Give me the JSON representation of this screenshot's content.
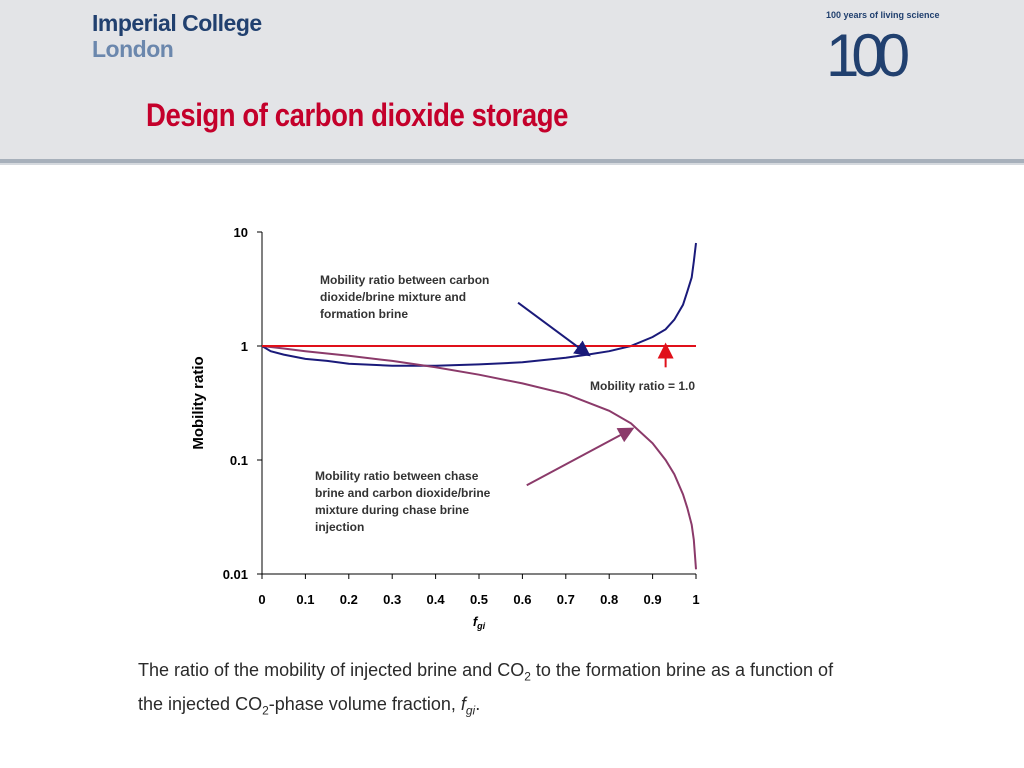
{
  "header": {
    "logo_line1": "Imperial College",
    "logo_line2": "London",
    "badge_caption": "100 years of living science",
    "badge_number": "100",
    "slide_title": "Design of carbon dioxide storage"
  },
  "caption": {
    "part1": "The ratio of the mobility of injected brine and CO",
    "sub1": "2",
    "part2": " to the formation brine as a function of the injected CO",
    "sub2": "2",
    "part3": "-phase volume fraction, ",
    "var_main": "f",
    "var_sub": "gi",
    "part4": "."
  },
  "colors": {
    "title_red": "#c4002b",
    "logo_blue": "#21406f",
    "logo_light_blue": "#6b87ad",
    "header_gray": "#e3e4e7"
  },
  "chart_data": {
    "type": "line",
    "xlabel_main": "f",
    "xlabel_sub": "gi",
    "ylabel": "Mobility ratio",
    "xlim": [
      0,
      1
    ],
    "ylim": [
      0.01,
      10
    ],
    "yscale": "log",
    "x_ticks": [
      0,
      0.1,
      0.2,
      0.3,
      0.4,
      0.5,
      0.6,
      0.7,
      0.8,
      0.9,
      1
    ],
    "x_tick_labels": [
      "0",
      "0.1",
      "0.2",
      "0.3",
      "0.4",
      "0.5",
      "0.6",
      "0.7",
      "0.8",
      "0.9",
      "1"
    ],
    "y_ticks": [
      10,
      1,
      0.1,
      0.01
    ],
    "y_tick_labels": [
      "10",
      "1",
      "0.1",
      "0.01"
    ],
    "grid": false,
    "legend": "none",
    "series": [
      {
        "color": "#1a1a7a",
        "x": [
          0,
          0.02,
          0.05,
          0.1,
          0.15,
          0.2,
          0.3,
          0.4,
          0.5,
          0.6,
          0.7,
          0.75,
          0.8,
          0.85,
          0.9,
          0.93,
          0.95,
          0.97,
          0.98,
          0.99,
          0.995,
          1.0
        ],
        "y": [
          1.0,
          0.9,
          0.84,
          0.77,
          0.74,
          0.7,
          0.67,
          0.67,
          0.69,
          0.72,
          0.79,
          0.84,
          0.9,
          1.0,
          1.2,
          1.4,
          1.7,
          2.3,
          3.0,
          4.0,
          5.5,
          8.0
        ]
      },
      {
        "color": "#8b3a6a",
        "x": [
          0,
          0.05,
          0.1,
          0.2,
          0.3,
          0.4,
          0.5,
          0.6,
          0.7,
          0.8,
          0.85,
          0.9,
          0.93,
          0.95,
          0.97,
          0.98,
          0.99,
          0.995,
          1.0
        ],
        "y": [
          1.0,
          0.95,
          0.9,
          0.82,
          0.74,
          0.65,
          0.56,
          0.47,
          0.38,
          0.27,
          0.21,
          0.14,
          0.1,
          0.075,
          0.05,
          0.038,
          0.027,
          0.02,
          0.011
        ]
      },
      {
        "color": "#e0101a",
        "x": [
          0,
          1
        ],
        "y": [
          1.0,
          1.0
        ]
      }
    ],
    "annotations": [
      {
        "lines": [
          "Mobility ratio between carbon",
          "dioxide/brine mixture and",
          "formation brine"
        ],
        "arrow_from": [
          0.59,
          2.4
        ],
        "arrow_to": [
          0.75,
          0.85
        ],
        "color": "#1a1a7a"
      },
      {
        "lines": [
          "Mobility ratio = 1.0"
        ],
        "arrow_from": [
          0.93,
          0.65
        ],
        "arrow_to": [
          0.93,
          0.99
        ],
        "color": "#e0101a"
      },
      {
        "lines": [
          "Mobility ratio between chase",
          "brine and carbon dioxide/brine",
          "mixture during chase brine",
          "injection"
        ],
        "arrow_from": [
          0.61,
          0.06
        ],
        "arrow_to": [
          0.85,
          0.185
        ],
        "color": "#8b3a6a"
      }
    ]
  }
}
